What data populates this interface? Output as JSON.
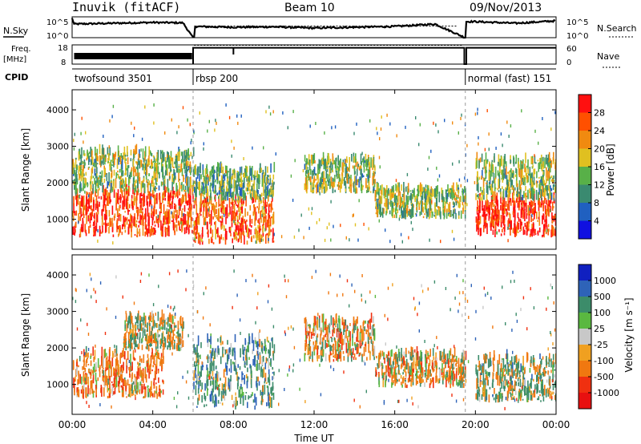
{
  "header": {
    "station": "Inuvik (fitACF)",
    "beam": "Beam 10",
    "date": "09/Nov/2013"
  },
  "strip_labels": {
    "nsky": "N.Sky",
    "nsearch": "N.Search",
    "freq_line1": "Freq.",
    "freq_line2": "[MHz]",
    "nave": "Nave",
    "cpid": "CPID"
  },
  "noise_panel": {
    "left_ticks": [
      "10^5",
      "10^0"
    ],
    "right_ticks": [
      "10^5",
      "10^0"
    ]
  },
  "freq_panel": {
    "left_ticks": [
      "18",
      "8"
    ],
    "right_ticks": [
      "60",
      "0"
    ]
  },
  "cpid_segments": [
    {
      "label": "twofsound 3501",
      "start_hour": 0,
      "end_hour": 6.0
    },
    {
      "label": "rbsp 200",
      "start_hour": 6.0,
      "end_hour": 19.5
    },
    {
      "label": "normal (fast) 151",
      "start_hour": 19.5,
      "end_hour": 24
    }
  ],
  "x_axis": {
    "label": "Time UT",
    "ticks": [
      "00:00",
      "04:00",
      "08:00",
      "12:00",
      "16:00",
      "20:00",
      "00:00"
    ]
  },
  "y_axis": {
    "label": "Slant Range [km]",
    "ticks": [
      "1000",
      "2000",
      "3000",
      "4000"
    ]
  },
  "power_colorbar": {
    "label": "Power [dB]",
    "ticks": [
      "4",
      "8",
      "12",
      "16",
      "20",
      "24",
      "28"
    ],
    "colors": [
      "#1010e0",
      "#2060c0",
      "#3a8a70",
      "#58b048",
      "#e0c020",
      "#f08a10",
      "#ff5000",
      "#ff1010"
    ]
  },
  "velocity_colorbar": {
    "label": "Velocity [m s⁻¹]",
    "ticks": [
      "1000",
      "500",
      "100",
      "25",
      "-25",
      "-100",
      "-500",
      "-1000"
    ],
    "colors": [
      "#1020c0",
      "#2e63b8",
      "#3c8c6a",
      "#5ab840",
      "#c8c8c8",
      "#f0a020",
      "#f07810",
      "#f03010",
      "#e81010"
    ]
  },
  "chart_data": [
    {
      "type": "heatmap",
      "title": "Power",
      "xlabel": "Time UT",
      "ylabel": "Slant Range [km]",
      "xlim": [
        0,
        24
      ],
      "ylim": [
        180,
        4550
      ],
      "color_quantity": "Power [dB]",
      "colorbar_range": [
        0,
        30
      ],
      "regions": [
        {
          "t_start": 0.0,
          "t_end": 6.0,
          "range_start": 500,
          "range_end": 1700,
          "dominant_db": 26
        },
        {
          "t_start": 0.0,
          "t_end": 6.0,
          "range_start": 1700,
          "range_end": 2800,
          "dominant_db": 14
        },
        {
          "t_start": 6.0,
          "t_end": 10.0,
          "range_start": 300,
          "range_end": 1500,
          "dominant_db": 24
        },
        {
          "t_start": 6.0,
          "t_end": 10.0,
          "range_start": 1500,
          "range_end": 2300,
          "dominant_db": 12
        },
        {
          "t_start": 11.5,
          "t_end": 15.0,
          "range_start": 1700,
          "range_end": 2600,
          "dominant_db": 14
        },
        {
          "t_start": 15.0,
          "t_end": 19.5,
          "range_start": 1000,
          "range_end": 1800,
          "dominant_db": 14
        },
        {
          "t_start": 20.0,
          "t_end": 24.0,
          "range_start": 500,
          "range_end": 1500,
          "dominant_db": 28
        },
        {
          "t_start": 20.0,
          "t_end": 24.0,
          "range_start": 1500,
          "range_end": 2600,
          "dominant_db": 14
        }
      ]
    },
    {
      "type": "heatmap",
      "title": "Velocity",
      "xlabel": "Time UT",
      "ylabel": "Slant Range [km]",
      "xlim": [
        0,
        24
      ],
      "ylim": [
        180,
        4550
      ],
      "color_quantity": "Velocity [m s-1]",
      "colorbar_range": [
        -1000,
        1000
      ],
      "regions": [
        {
          "t_start": 0.0,
          "t_end": 4.5,
          "range_start": 600,
          "range_end": 1800,
          "dominant_ms": -300
        },
        {
          "t_start": 2.5,
          "t_end": 5.5,
          "range_start": 1900,
          "range_end": 2800,
          "dominant_ms": 0
        },
        {
          "t_start": 6.0,
          "t_end": 10.0,
          "range_start": 300,
          "range_end": 2200,
          "dominant_ms": 300
        },
        {
          "t_start": 11.5,
          "t_end": 15.0,
          "range_start": 1600,
          "range_end": 2700,
          "dominant_ms": -200
        },
        {
          "t_start": 15.0,
          "t_end": 19.5,
          "range_start": 900,
          "range_end": 1800,
          "dominant_ms": -150
        },
        {
          "t_start": 20.0,
          "t_end": 24.0,
          "range_start": 500,
          "range_end": 1700,
          "dominant_ms": 100
        }
      ]
    },
    {
      "type": "line",
      "title": "N.Sky",
      "x_hours": [
        0,
        0.1,
        2,
        4,
        5.5,
        5.99,
        6.01,
        8,
        10,
        12,
        14,
        16,
        18,
        19.49,
        19.51,
        20,
        22,
        24
      ],
      "y_log10": [
        4.8,
        3.4,
        3.6,
        3.8,
        3.7,
        0.0,
        2.8,
        2.6,
        2.7,
        2.4,
        2.6,
        2.8,
        3.4,
        0.0,
        4.0,
        4.0,
        3.6,
        4.2
      ]
    },
    {
      "type": "line",
      "title": "Freq. [MHz]",
      "x_hours": [
        0,
        6.0,
        6.0,
        19.5,
        19.5,
        24
      ],
      "y_mhz": [
        12,
        12,
        10.5,
        10.5,
        10.5,
        10.5
      ]
    }
  ]
}
